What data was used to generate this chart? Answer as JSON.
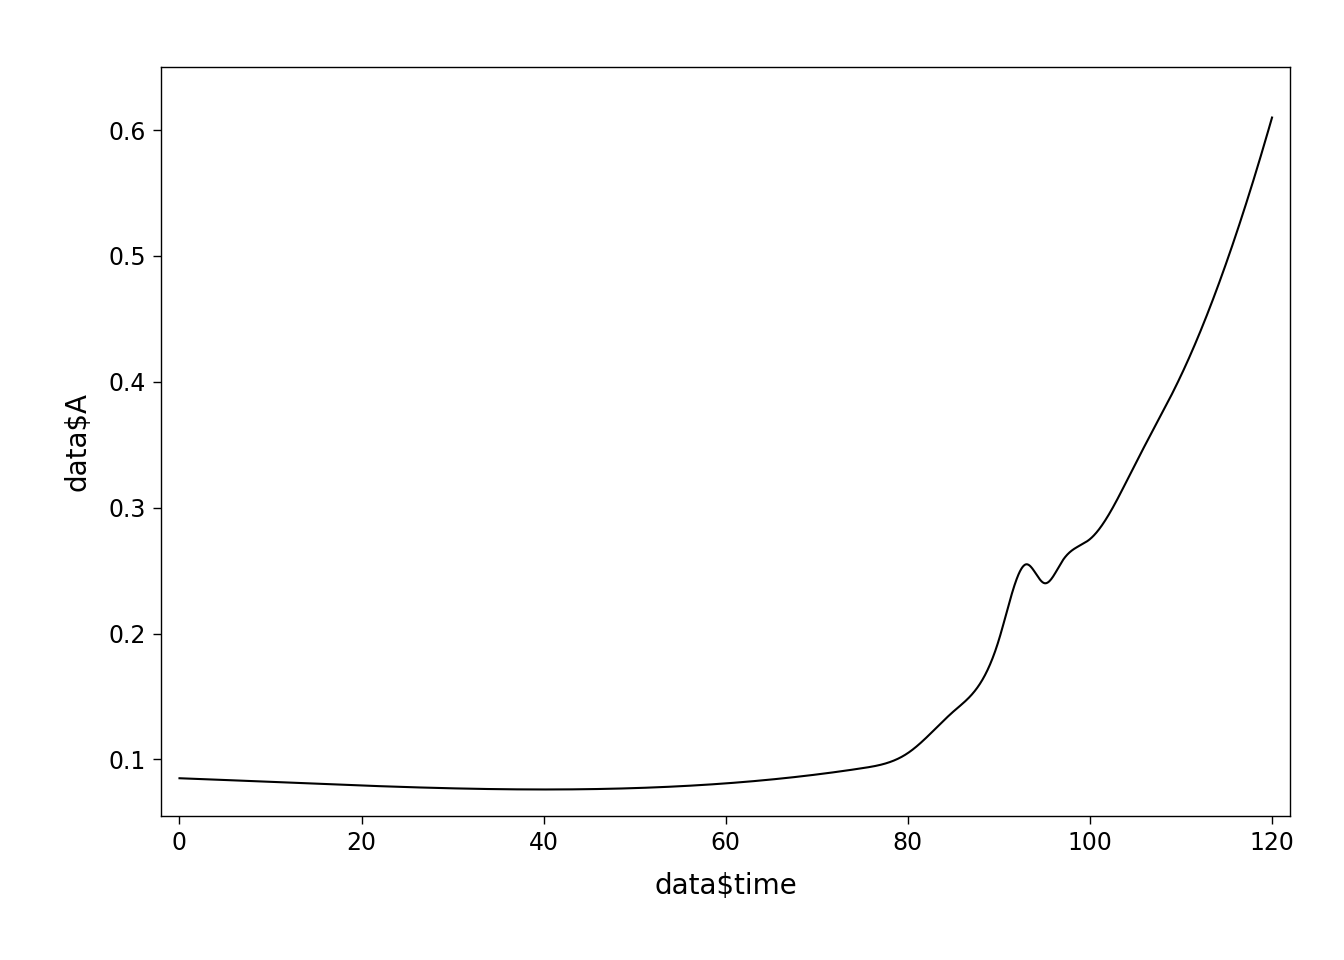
{
  "xlabel": "data$time",
  "ylabel": "data$A",
  "xlim": [
    -2,
    122
  ],
  "ylim": [
    0.055,
    0.65
  ],
  "xticks": [
    0,
    20,
    40,
    60,
    80,
    100,
    120
  ],
  "yticks": [
    0.1,
    0.2,
    0.3,
    0.4,
    0.5,
    0.6
  ],
  "line_color": "#000000",
  "line_width": 1.5,
  "background_color": "#ffffff",
  "xlabel_fontsize": 20,
  "ylabel_fontsize": 20,
  "tick_fontsize": 17
}
